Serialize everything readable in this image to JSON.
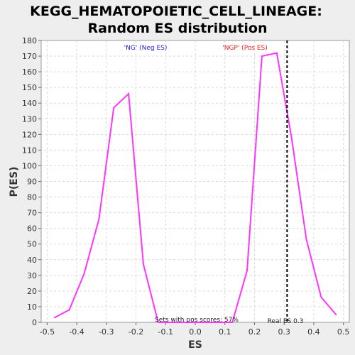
{
  "chart_data": {
    "type": "line",
    "title_lines": [
      "KEGG_HEMATOPOIETIC_CELL_LINEAGE:",
      "Random ES distribution"
    ],
    "xlabel": "ES",
    "ylabel": "P(ES)",
    "xlim": [
      -0.52,
      0.52
    ],
    "ylim": [
      0,
      180
    ],
    "xticks": [
      -0.5,
      -0.4,
      -0.3,
      -0.2,
      -0.1,
      0.0,
      0.1,
      0.2,
      0.3,
      0.4,
      0.5
    ],
    "xtick_labels": [
      "-0.5",
      "-0.4",
      "-0.3",
      "-0.2",
      "-0.1",
      "0.0",
      "0.1",
      "0.2",
      "0.3",
      "0.4",
      "0.5"
    ],
    "yticks": [
      0,
      10,
      20,
      30,
      40,
      50,
      60,
      70,
      80,
      90,
      100,
      110,
      120,
      130,
      140,
      150,
      160,
      170,
      180
    ],
    "grid": true,
    "line_color": "#ff33ff",
    "series": [
      {
        "x": [
          -0.475,
          -0.425,
          -0.375,
          -0.325,
          -0.275,
          -0.225,
          -0.175,
          -0.125,
          -0.075,
          -0.025,
          0.025,
          0.075,
          0.125,
          0.175,
          0.225,
          0.275,
          0.325,
          0.375,
          0.425,
          0.475
        ],
        "values": [
          3,
          8,
          31,
          66,
          137,
          146,
          37,
          0,
          0,
          0,
          0,
          0,
          0,
          33,
          170,
          172,
          118,
          53,
          16,
          5
        ]
      }
    ],
    "real_es": 0.31,
    "annotations": {
      "neg_label": "'NG' (Neg ES)",
      "neg_color": "#2222dd",
      "pos_label": "'NGP' (Pos ES)",
      "pos_color": "#ee2222",
      "pos_scores": "Sets with pos scores: 57%",
      "real_es_label": "Real ES 0.3"
    }
  }
}
